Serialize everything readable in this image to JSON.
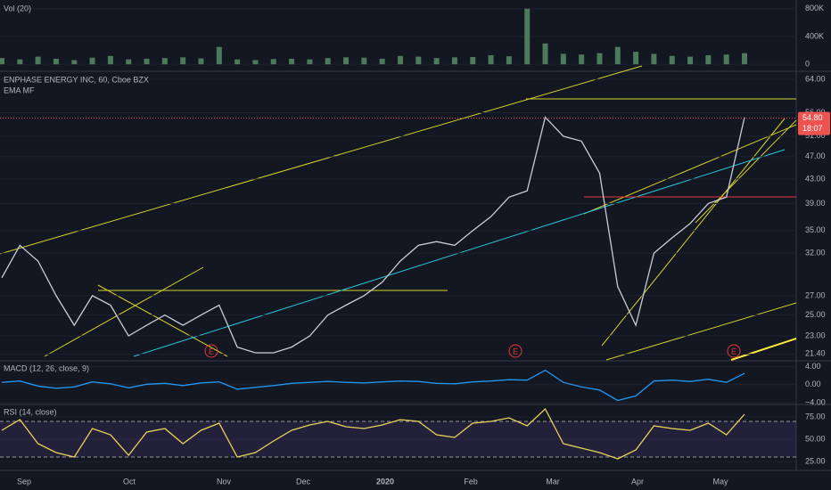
{
  "chart_data": [
    {
      "type": "bar",
      "title": "Vol (20)",
      "series": [
        {
          "name": "Volume",
          "color": "#4c7a5a",
          "values": [
            90000,
            70000,
            110000,
            80000,
            60000,
            95000,
            120000,
            70000,
            80000,
            90000,
            100000,
            85000,
            250000,
            70000,
            60000,
            75000,
            80000,
            70000,
            90000,
            100000,
            95000,
            80000,
            120000,
            110000,
            90000,
            100000,
            105000,
            130000,
            115000,
            800000,
            300000,
            150000,
            140000,
            160000,
            250000,
            180000,
            150000,
            120000,
            110000,
            130000,
            140000,
            160000
          ]
        }
      ],
      "ylim": [
        -75000,
        900000
      ],
      "yticks": [
        {
          "value": 800000,
          "label": "800K"
        },
        {
          "value": 400000,
          "label": "400K"
        },
        0
      ]
    },
    {
      "type": "line",
      "title": "ENPHASE ENERGY INC, 60, Cboe BZX",
      "subtitle": "EMA MF",
      "log_scale": true,
      "series": [
        {
          "name": "Close",
          "color": "#c9ccd3",
          "values": [
            29,
            33,
            31,
            27,
            24,
            27,
            26,
            23,
            24,
            25,
            24,
            25,
            26,
            22,
            21.5,
            21.5,
            22,
            23,
            25,
            26,
            27,
            28.5,
            31,
            33,
            33.5,
            33,
            35,
            37,
            40,
            41,
            55,
            51,
            50,
            44,
            28,
            24,
            32,
            34,
            36,
            39,
            40,
            55
          ]
        }
      ],
      "ylim": [
        20.9,
        65.6
      ],
      "yticks": [
        {
          "value": 64,
          "label": "64.00"
        },
        {
          "value": 56,
          "label": "56.00"
        },
        {
          "value": 51,
          "label": "51.00"
        },
        {
          "value": 47,
          "label": "47.00"
        },
        {
          "value": 43,
          "label": "43.00"
        },
        {
          "value": 39,
          "label": "39.00"
        },
        {
          "value": 35,
          "label": "35.00"
        },
        {
          "value": 32,
          "label": "32.00"
        },
        {
          "value": 27,
          "label": "27.00"
        },
        {
          "value": 25,
          "label": "25.00"
        },
        {
          "value": 23,
          "label": "23.00"
        },
        {
          "value": 21.4,
          "label": "21.40"
        }
      ],
      "last_price": {
        "value": 54.8,
        "label": "54.80"
      },
      "countdown": "18:07",
      "earnings_marker": "E"
    },
    {
      "type": "line",
      "title": "MACD (12, 26, close, 9)",
      "series": [
        {
          "name": "MACD",
          "color": "#2196f3",
          "values": [
            0.5,
            0.8,
            -0.3,
            -0.8,
            -0.5,
            0.6,
            0.2,
            -0.7,
            0.1,
            0.3,
            -0.2,
            0.4,
            0.6,
            -1,
            -0.6,
            -0.2,
            0.3,
            0.5,
            0.7,
            0.5,
            0.4,
            0.6,
            0.8,
            0.7,
            0.3,
            0.2,
            0.6,
            0.8,
            1.1,
            1,
            3.2,
            0.5,
            -0.5,
            -1.2,
            -3.5,
            -2.5,
            0.8,
            1,
            0.7,
            1.2,
            0.5,
            2.5
          ]
        }
      ],
      "ylim": [
        -4.2,
        5.1
      ],
      "yticks": [
        {
          "value": 4,
          "label": "4.00"
        },
        {
          "value": 0,
          "label": "0.00"
        },
        {
          "value": -4,
          "label": "−4.00"
        }
      ]
    },
    {
      "type": "line",
      "title": "RSI (14, close)",
      "series": [
        {
          "name": "RSI",
          "color": "#e8d25a",
          "values": [
            60,
            72,
            45,
            35,
            30,
            62,
            55,
            32,
            58,
            62,
            45,
            60,
            68,
            30,
            35,
            48,
            60,
            66,
            70,
            64,
            62,
            66,
            72,
            70,
            55,
            52,
            68,
            70,
            74,
            65,
            84,
            45,
            40,
            35,
            28,
            38,
            65,
            62,
            60,
            68,
            55,
            78
          ]
        }
      ],
      "ylim": [
        16,
        88
      ],
      "bands": [
        30,
        70
      ],
      "yticks": [
        {
          "value": 75,
          "label": "75.00"
        },
        {
          "value": 50,
          "label": "50.00"
        },
        {
          "value": 25,
          "label": "25.00"
        }
      ]
    }
  ],
  "time_axis": [
    "Sep",
    "Oct",
    "Nov",
    "Dec",
    "2020",
    "Feb",
    "Mar",
    "Apr",
    "May"
  ]
}
